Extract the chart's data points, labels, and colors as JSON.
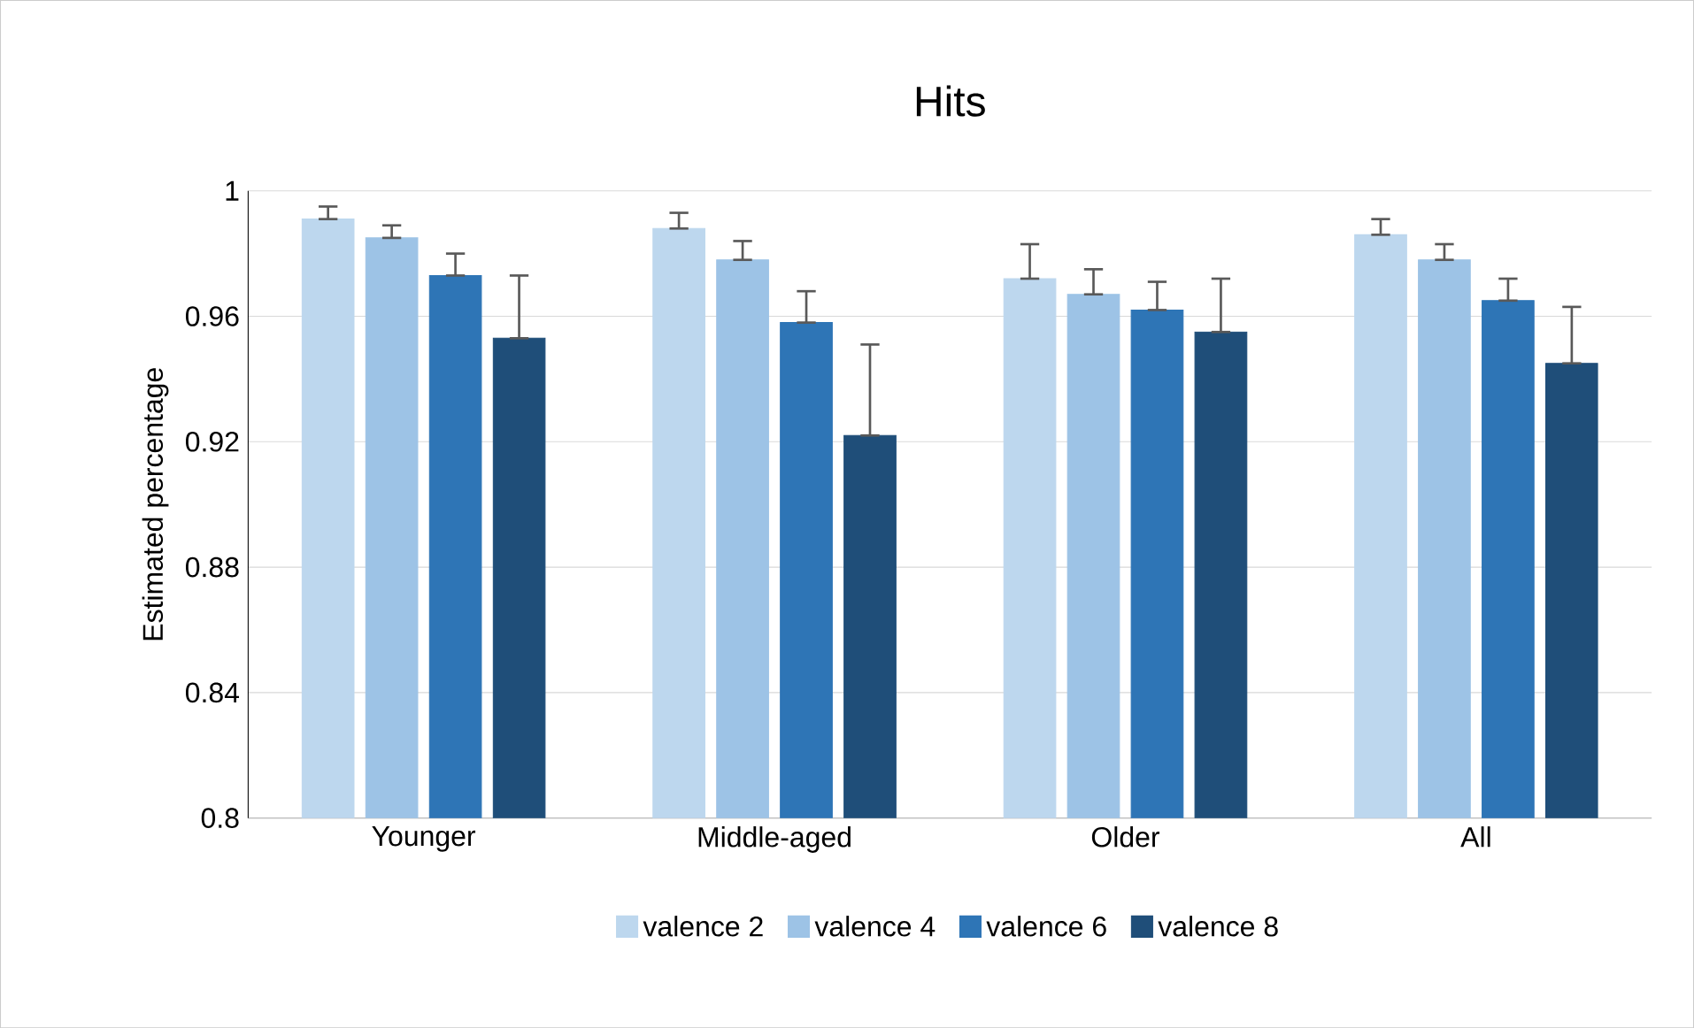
{
  "chart_data": {
    "type": "bar",
    "title": "Hits",
    "ylabel": "Estimated percentage",
    "categories": [
      "Younger",
      "Middle-aged",
      "Older",
      "All"
    ],
    "series": [
      {
        "name": "valence 2",
        "color": "#bdd7ee",
        "values": [
          0.991,
          0.988,
          0.972,
          0.986
        ],
        "errors": [
          [
            0.991,
            0.995
          ],
          [
            0.988,
            0.993
          ],
          [
            0.972,
            0.983
          ],
          [
            0.986,
            0.991
          ]
        ]
      },
      {
        "name": "valence 4",
        "color": "#9dc3e6",
        "values": [
          0.985,
          0.978,
          0.967,
          0.978
        ],
        "errors": [
          [
            0.985,
            0.989
          ],
          [
            0.978,
            0.984
          ],
          [
            0.967,
            0.975
          ],
          [
            0.978,
            0.983
          ]
        ]
      },
      {
        "name": "valence 6",
        "color": "#2e75b6",
        "values": [
          0.973,
          0.958,
          0.962,
          0.965
        ],
        "errors": [
          [
            0.973,
            0.98
          ],
          [
            0.958,
            0.968
          ],
          [
            0.962,
            0.971
          ],
          [
            0.965,
            0.972
          ]
        ]
      },
      {
        "name": "valence 8",
        "color": "#1f4e79",
        "values": [
          0.953,
          0.922,
          0.955,
          0.945
        ],
        "errors": [
          [
            0.953,
            0.973
          ],
          [
            0.922,
            0.951
          ],
          [
            0.955,
            0.972
          ],
          [
            0.945,
            0.963
          ]
        ]
      }
    ],
    "ylim": [
      0.8,
      1
    ],
    "yticks": [
      0.8,
      0.84,
      0.88,
      0.92,
      0.96,
      1
    ],
    "grid": "y",
    "legend": "bottom"
  }
}
